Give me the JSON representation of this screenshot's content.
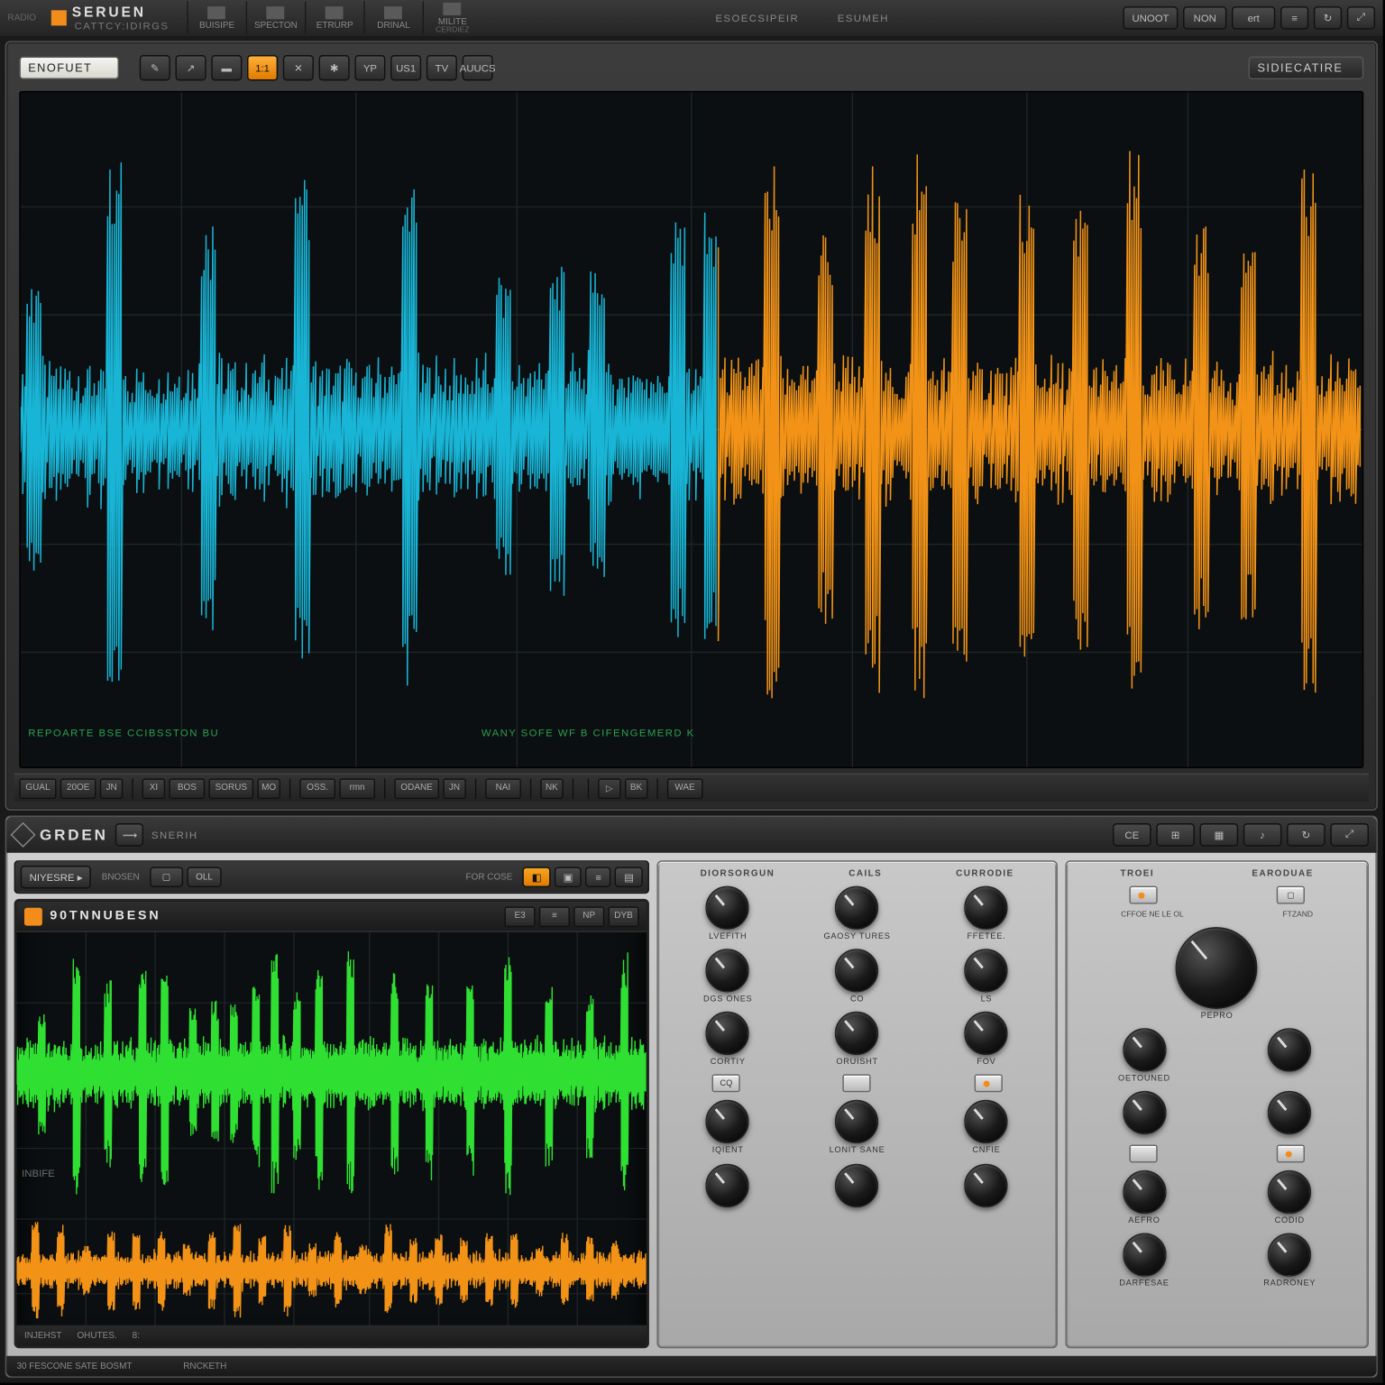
{
  "colors": {
    "accent": "#f28c1a",
    "cyan": "#19b5d6",
    "orange": "#f29317",
    "green": "#2fe032",
    "bg": "#0b0f11"
  },
  "topbar": {
    "brand": "SERUEN",
    "subtitle": "CATTCY:IDIRGS",
    "tiny": "RADIO",
    "menus": [
      {
        "label": "BUISIPE"
      },
      {
        "label": "SPECTON"
      },
      {
        "label": "ETRURP"
      },
      {
        "label": "DRINAL"
      },
      {
        "label": "MILITE",
        "sub": "CERDIEZ"
      }
    ],
    "centers": [
      "ESOECSIPEIR",
      "ESUMEH"
    ],
    "right": [
      {
        "label": "UNOOT"
      },
      {
        "label": "NON"
      },
      {
        "label": "ert"
      },
      {
        "label": "≡",
        "icon": true
      },
      {
        "label": "↻",
        "icon": true
      },
      {
        "label": "⤢",
        "icon": true
      }
    ]
  },
  "upper": {
    "preset": "ENOFUET",
    "toolbar": [
      {
        "t": "icon",
        "glyph": "✎"
      },
      {
        "t": "icon",
        "glyph": "↗"
      },
      {
        "t": "icon",
        "glyph": "▬"
      },
      {
        "t": "btn",
        "label": "1:1",
        "on": true
      },
      {
        "t": "icon",
        "glyph": "✕"
      },
      {
        "t": "icon",
        "glyph": "✱"
      },
      {
        "t": "btn",
        "label": "YP"
      },
      {
        "t": "btn",
        "label": "US1"
      },
      {
        "t": "btn",
        "label": "TV"
      },
      {
        "t": "btn",
        "label": "AUUCS"
      }
    ],
    "right_label": "SIDIECATIRE",
    "status_left": "REPOARTE  BSE  CCIBSSTON   BU",
    "status_right": "WANY SOFE    WF B CIFENGEMERD K",
    "wave": {
      "split_x": 0.52,
      "baseline": 0.5,
      "amp_base": 0.12,
      "spike_amp": 0.42,
      "spike_positions": [
        0.01,
        0.07,
        0.14,
        0.21,
        0.29,
        0.36,
        0.4,
        0.43,
        0.49,
        0.56,
        0.6,
        0.635,
        0.67,
        0.7,
        0.75,
        0.79,
        0.83,
        0.88,
        0.915,
        0.96,
        0.515
      ],
      "grid_v": [
        0.12,
        0.25,
        0.37,
        0.5,
        0.62,
        0.75,
        0.87
      ],
      "grid_h": [
        0.17,
        0.33,
        0.5,
        0.67,
        0.83
      ]
    },
    "bottom_row": [
      "GUAL",
      "20OE",
      "JN",
      "",
      "XI",
      "BOS",
      "SORUS",
      "MO",
      "",
      "OSS.",
      "rmn",
      "",
      "ODANE",
      "JN",
      "",
      "NAI",
      "",
      "NK",
      "",
      "",
      "▷",
      "BK",
      "",
      "WAE"
    ]
  },
  "lower": {
    "brand": "GRDEN",
    "mode_btn": "⟿",
    "tag": "SNERIH",
    "right": [
      {
        "label": "CE"
      },
      {
        "label": "⊞"
      },
      {
        "label": "▦"
      },
      {
        "label": "♪"
      },
      {
        "label": "↻"
      },
      {
        "label": "⤢"
      }
    ],
    "left_toolbar": {
      "chip": "NIYESRE ▸",
      "cap1": "BNOSEN",
      "btns1": [
        "▢",
        "OLL"
      ],
      "cap2": "FOR COSE",
      "btns2": [
        "◧",
        "▣",
        "≡",
        "▤"
      ]
    },
    "screen": {
      "title": "90TNNUBESN",
      "tbtns": [
        "E3",
        "≡",
        "NP",
        "DYB"
      ],
      "ylabel": "INBIFE",
      "footer": [
        "INJEHST",
        "",
        "OHUTES.",
        "",
        "8:"
      ],
      "wave_top": {
        "baseline": 0.36,
        "amp_base": 0.1,
        "spike_amp": 0.32,
        "color": "#2fe032",
        "spikes": [
          0.04,
          0.095,
          0.145,
          0.2,
          0.235,
          0.28,
          0.315,
          0.345,
          0.38,
          0.41,
          0.445,
          0.48,
          0.53,
          0.6,
          0.655,
          0.72,
          0.78,
          0.845,
          0.91,
          0.965
        ]
      },
      "wave_bot": {
        "baseline": 0.86,
        "amp_base": 0.055,
        "spike_amp": 0.13,
        "color": "#f29317",
        "spikes": [
          0.03,
          0.07,
          0.11,
          0.15,
          0.19,
          0.23,
          0.27,
          0.31,
          0.35,
          0.39,
          0.43,
          0.47,
          0.51,
          0.55,
          0.59,
          0.63,
          0.67,
          0.71,
          0.75,
          0.79,
          0.83,
          0.87,
          0.91,
          0.95
        ]
      },
      "grid_v": [
        0.11,
        0.22,
        0.33,
        0.44,
        0.56,
        0.67,
        0.78,
        0.89
      ],
      "grid_h": [
        0.18,
        0.36,
        0.55,
        0.73,
        0.92
      ]
    },
    "panel1": {
      "hdr": [
        "DIORSORGUN",
        "CAILS",
        "CURRODIE"
      ],
      "rows": [
        [
          {
            "l": "LVEFITH"
          },
          {
            "l": "GAOSY TURES"
          },
          {
            "l": "FFETEE."
          }
        ],
        [
          {
            "l": "DGS ONES"
          },
          {
            "l": "CO"
          },
          {
            "l": "LS"
          }
        ],
        [
          {
            "l": "CORTIY"
          },
          {
            "l": "ORUISHT"
          },
          {
            "l": "FOV"
          }
        ]
      ],
      "btns": [
        "CQ",
        "",
        "●"
      ],
      "rows2": [
        [
          {
            "l": "IQIENT"
          },
          {
            "l": "LONIT SANE"
          },
          {
            "l": "CNFIE"
          }
        ],
        [
          {
            "l": ""
          },
          {
            "l": ""
          },
          {
            "l": ""
          }
        ]
      ]
    },
    "panel2": {
      "hdr": [
        "TROEI",
        "EARODUAE"
      ],
      "topbtns": [
        "●",
        "▢"
      ],
      "caps": [
        "CFFOE NE LE OL",
        "FTZAND"
      ],
      "big": [
        {
          "l": "PEPRO"
        }
      ],
      "rows": [
        [
          {
            "l": "OETOUNED"
          },
          {
            "l": ""
          }
        ],
        [
          {
            "l": ""
          },
          {
            "l": ""
          }
        ]
      ],
      "btns2": [
        "",
        "●"
      ],
      "rows2": [
        [
          {
            "l": "AEFRO"
          },
          {
            "l": "CODID"
          }
        ],
        [
          {
            "l": "DARFESAE"
          },
          {
            "l": "RADRONEY"
          }
        ]
      ]
    }
  },
  "footer": [
    "30 FESCONE SATE BOSMT",
    "",
    "RNCKETH"
  ]
}
